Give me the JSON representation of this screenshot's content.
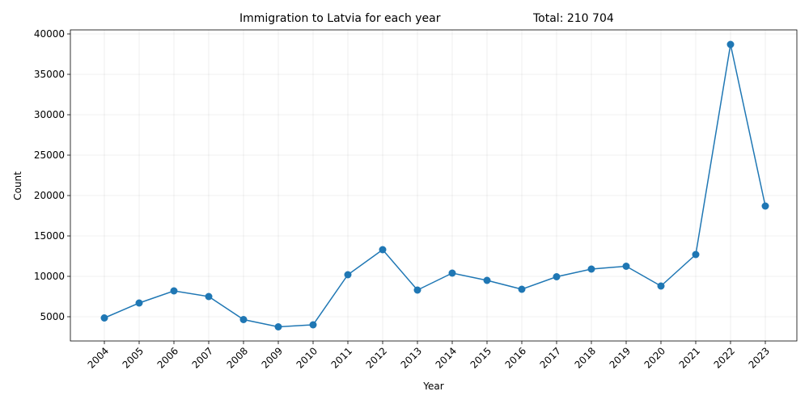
{
  "chart_data": {
    "type": "line",
    "title": "Immigration to Latvia for each year",
    "subtitle": "Total: 210 704",
    "xlabel": "Year",
    "ylabel": "Count",
    "categories": [
      "2004",
      "2005",
      "2006",
      "2007",
      "2008",
      "2009",
      "2010",
      "2011",
      "2012",
      "2013",
      "2014",
      "2015",
      "2016",
      "2017",
      "2018",
      "2019",
      "2020",
      "2021",
      "2022",
      "2023"
    ],
    "values": [
      4850,
      6700,
      8200,
      7500,
      4650,
      3750,
      4000,
      10200,
      13300,
      8300,
      10400,
      9500,
      8400,
      9950,
      10900,
      11250,
      8800,
      12700,
      38700,
      18700
    ],
    "yticks": [
      5000,
      10000,
      15000,
      20000,
      25000,
      30000,
      35000,
      40000
    ],
    "ylim": [
      2000,
      40500
    ],
    "grid": true,
    "legend": "none",
    "colors": {
      "series": "#1f77b4"
    }
  }
}
